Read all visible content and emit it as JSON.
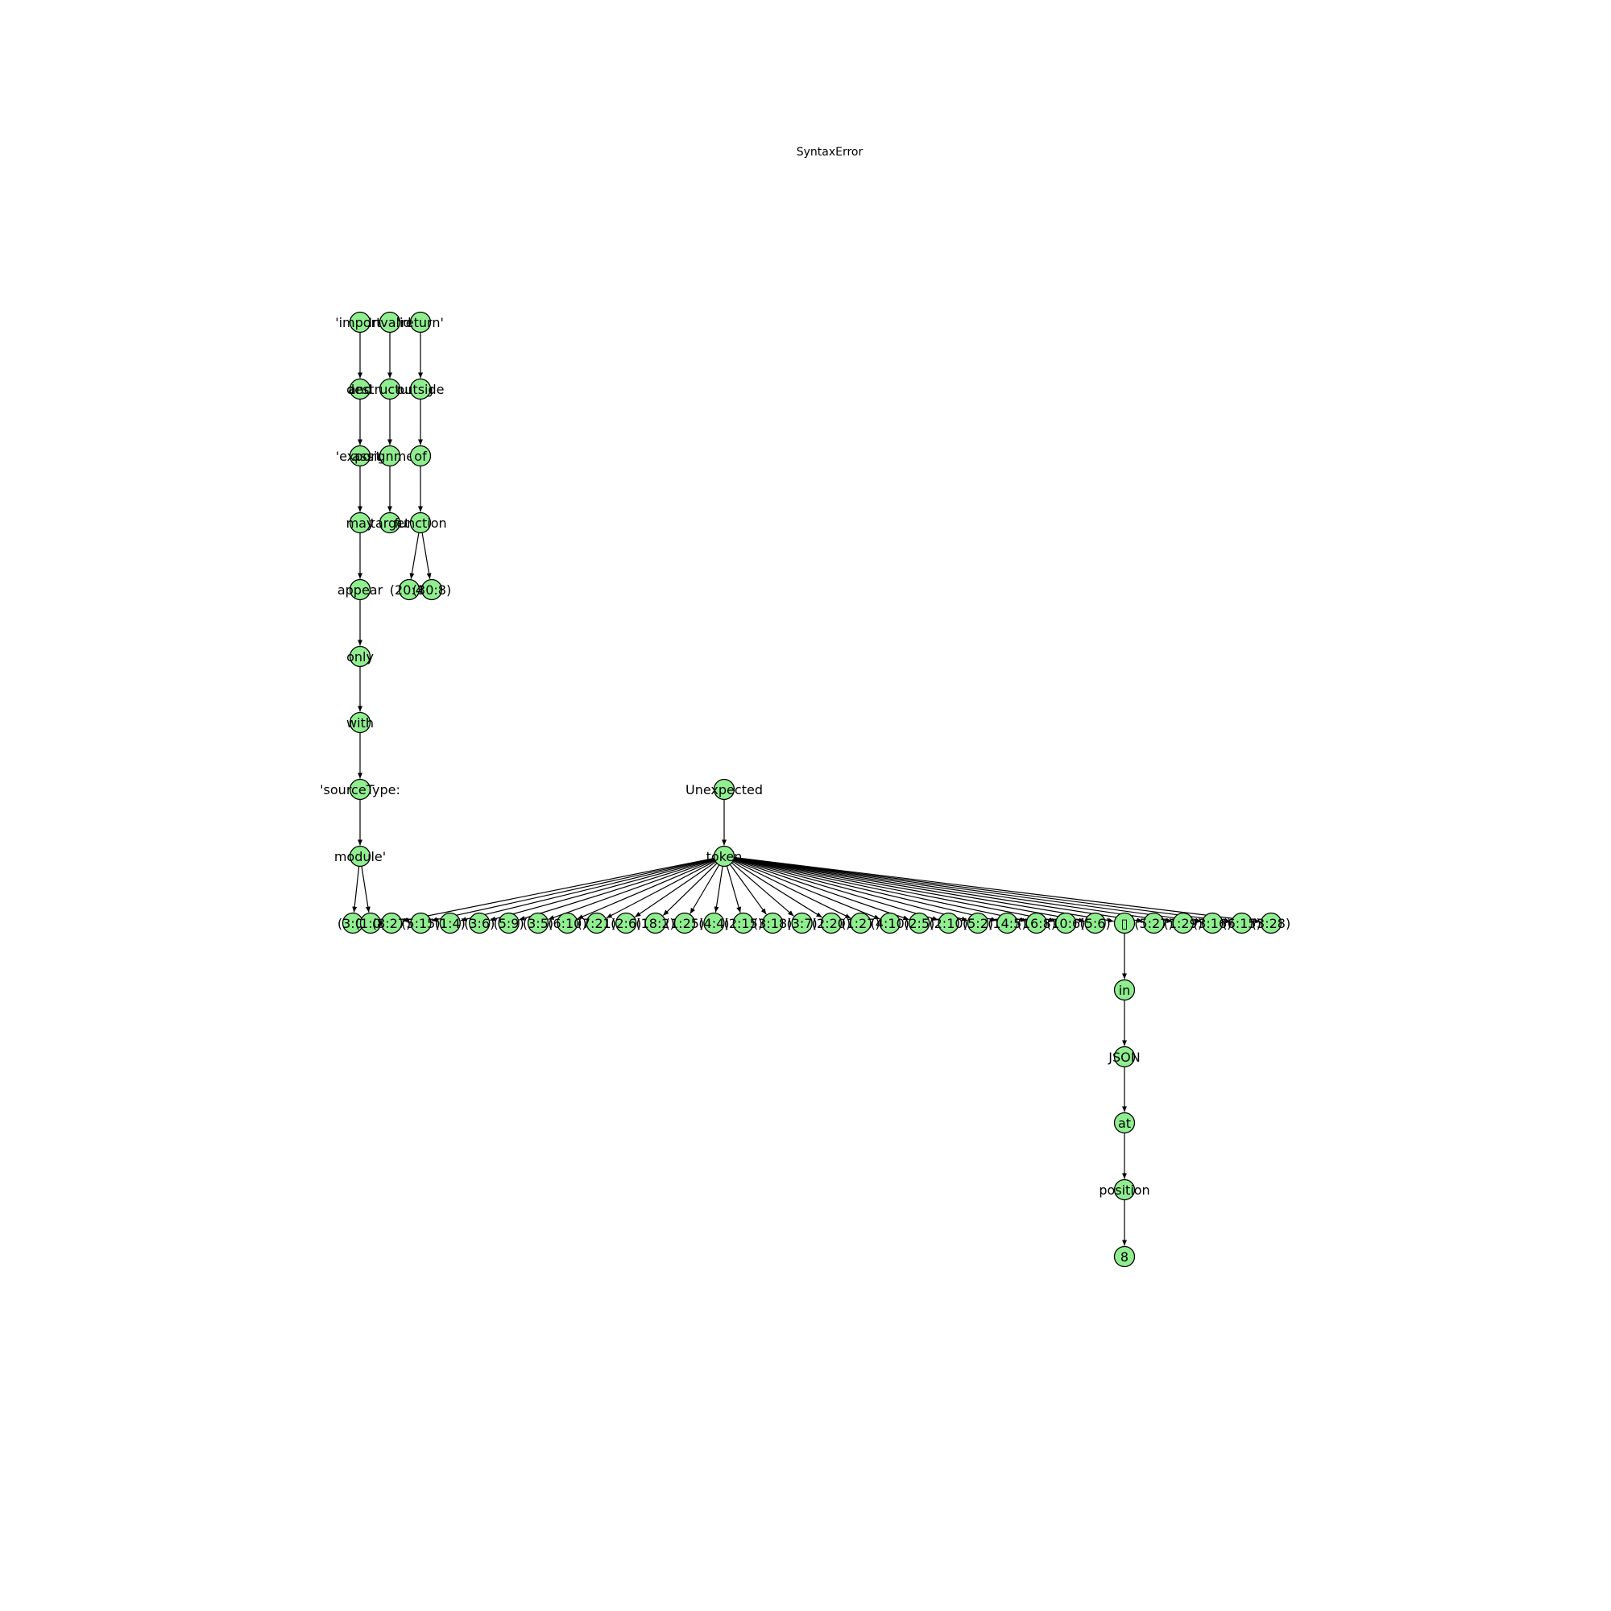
{
  "title": "SyntaxError",
  "style": {
    "node_fill": "#90ee90",
    "node_stroke": "#000000",
    "edge_color": "#000000"
  },
  "graph": {
    "nodes": [
      {
        "id": "n_import",
        "label": "'import'"
      },
      {
        "id": "n_and",
        "label": "and"
      },
      {
        "id": "n_export",
        "label": "'export'"
      },
      {
        "id": "n_may",
        "label": "may"
      },
      {
        "id": "n_appear",
        "label": "appear"
      },
      {
        "id": "n_only",
        "label": "only"
      },
      {
        "id": "n_with",
        "label": "with"
      },
      {
        "id": "n_sourcetype",
        "label": "'sourceType:"
      },
      {
        "id": "n_module",
        "label": "module'"
      },
      {
        "id": "n_m1",
        "label": "(3:0)"
      },
      {
        "id": "n_m2",
        "label": "(1:0)"
      },
      {
        "id": "n_invalid",
        "label": "Invalid"
      },
      {
        "id": "n_destructuring",
        "label": "destructuring"
      },
      {
        "id": "n_assignment",
        "label": "assignment"
      },
      {
        "id": "n_target",
        "label": "target"
      },
      {
        "id": "n_return",
        "label": "'return'"
      },
      {
        "id": "n_outside",
        "label": "outside"
      },
      {
        "id": "n_of",
        "label": "of"
      },
      {
        "id": "n_function",
        "label": "function"
      },
      {
        "id": "n_f1",
        "label": "(20:4)"
      },
      {
        "id": "n_f2",
        "label": "(30:8)"
      },
      {
        "id": "n_unexpected",
        "label": "Unexpected"
      },
      {
        "id": "n_token",
        "label": "token"
      },
      {
        "id": "t1",
        "label": "(8:27)"
      },
      {
        "id": "t2",
        "label": "(5:15)"
      },
      {
        "id": "t3",
        "label": "(1:4)"
      },
      {
        "id": "t4",
        "label": "(3:6)"
      },
      {
        "id": "t5",
        "label": "(5:9)"
      },
      {
        "id": "t6",
        "label": "(3:5)"
      },
      {
        "id": "t7",
        "label": "(6:10)"
      },
      {
        "id": "t8",
        "label": "(7:21)"
      },
      {
        "id": "t9",
        "label": "(2:6)"
      },
      {
        "id": "t10",
        "label": "(18:2)"
      },
      {
        "id": "t11",
        "label": "(1:25)"
      },
      {
        "id": "t12",
        "label": "(4:4)"
      },
      {
        "id": "t13",
        "label": "(2:15)"
      },
      {
        "id": "t14",
        "label": "(3:18)"
      },
      {
        "id": "t15",
        "label": "(3:7)"
      },
      {
        "id": "t16",
        "label": "(2:20)"
      },
      {
        "id": "t17",
        "label": "(1:27)"
      },
      {
        "id": "t18",
        "label": "(4:10)"
      },
      {
        "id": "t19",
        "label": "(2:5)"
      },
      {
        "id": "t20",
        "label": "(2:10)"
      },
      {
        "id": "t21",
        "label": "(5:2)"
      },
      {
        "id": "t22",
        "label": "(14:5)"
      },
      {
        "id": "t23",
        "label": "(16:8)"
      },
      {
        "id": "t24",
        "label": "(10:6)"
      },
      {
        "id": "t25",
        "label": "(5:6)"
      },
      {
        "id": "t_box",
        "label": "▯"
      },
      {
        "id": "t27",
        "label": "(5:27)"
      },
      {
        "id": "t28",
        "label": "(1:29)"
      },
      {
        "id": "t29",
        "label": "(3:16)"
      },
      {
        "id": "t30",
        "label": "(6:15)"
      },
      {
        "id": "t31",
        "label": "(3:28)"
      },
      {
        "id": "n_in",
        "label": "in"
      },
      {
        "id": "n_json",
        "label": "JSON"
      },
      {
        "id": "n_at",
        "label": "at"
      },
      {
        "id": "n_position",
        "label": "position"
      },
      {
        "id": "n_8",
        "label": "8"
      }
    ],
    "edges": [
      [
        "n_import",
        "n_and"
      ],
      [
        "n_and",
        "n_export"
      ],
      [
        "n_export",
        "n_may"
      ],
      [
        "n_may",
        "n_appear"
      ],
      [
        "n_appear",
        "n_only"
      ],
      [
        "n_only",
        "n_with"
      ],
      [
        "n_with",
        "n_sourcetype"
      ],
      [
        "n_sourcetype",
        "n_module"
      ],
      [
        "n_module",
        "n_m1"
      ],
      [
        "n_module",
        "n_m2"
      ],
      [
        "n_invalid",
        "n_destructuring"
      ],
      [
        "n_destructuring",
        "n_assignment"
      ],
      [
        "n_assignment",
        "n_target"
      ],
      [
        "n_return",
        "n_outside"
      ],
      [
        "n_outside",
        "n_of"
      ],
      [
        "n_of",
        "n_function"
      ],
      [
        "n_function",
        "n_f1"
      ],
      [
        "n_function",
        "n_f2"
      ],
      [
        "n_unexpected",
        "n_token"
      ],
      [
        "n_token",
        "t1"
      ],
      [
        "n_token",
        "t2"
      ],
      [
        "n_token",
        "t3"
      ],
      [
        "n_token",
        "t4"
      ],
      [
        "n_token",
        "t5"
      ],
      [
        "n_token",
        "t6"
      ],
      [
        "n_token",
        "t7"
      ],
      [
        "n_token",
        "t8"
      ],
      [
        "n_token",
        "t9"
      ],
      [
        "n_token",
        "t10"
      ],
      [
        "n_token",
        "t11"
      ],
      [
        "n_token",
        "t12"
      ],
      [
        "n_token",
        "t13"
      ],
      [
        "n_token",
        "t14"
      ],
      [
        "n_token",
        "t15"
      ],
      [
        "n_token",
        "t16"
      ],
      [
        "n_token",
        "t17"
      ],
      [
        "n_token",
        "t18"
      ],
      [
        "n_token",
        "t19"
      ],
      [
        "n_token",
        "t20"
      ],
      [
        "n_token",
        "t21"
      ],
      [
        "n_token",
        "t22"
      ],
      [
        "n_token",
        "t23"
      ],
      [
        "n_token",
        "t24"
      ],
      [
        "n_token",
        "t25"
      ],
      [
        "n_token",
        "t_box"
      ],
      [
        "n_token",
        "t27"
      ],
      [
        "n_token",
        "t28"
      ],
      [
        "n_token",
        "t29"
      ],
      [
        "n_token",
        "t30"
      ],
      [
        "n_token",
        "t31"
      ],
      [
        "t_box",
        "n_in"
      ],
      [
        "n_in",
        "n_json"
      ],
      [
        "n_json",
        "n_at"
      ],
      [
        "n_at",
        "n_position"
      ],
      [
        "n_position",
        "n_8"
      ]
    ]
  }
}
